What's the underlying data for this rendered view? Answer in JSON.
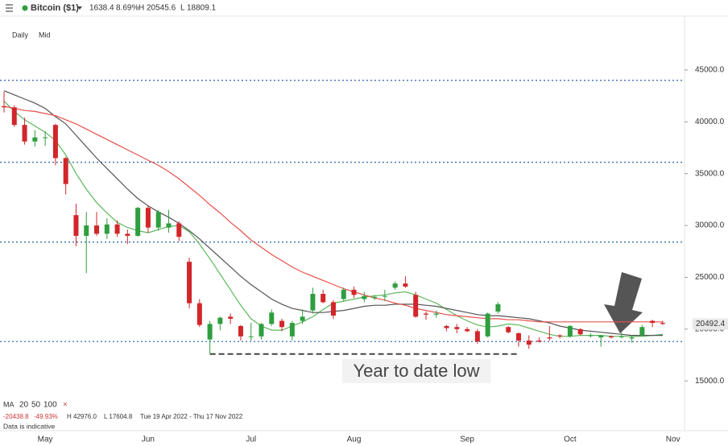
{
  "chart_data": {
    "type": "candlestick",
    "instrument": "Bitcoin ($1)",
    "change": "1638.4",
    "change_pct": "8.69%",
    "high_label": "H 20545.6",
    "low_label": "L 18809.1",
    "interval": "Daily",
    "price_type": "Mid",
    "ma_legend": {
      "label": "MA",
      "close": "×"
    },
    "stats": {
      "change": "-20438.8",
      "change_pct": "-49.93%",
      "high": "H 42976.0",
      "low": "L 17604.8",
      "range": "Tue 19 Apr 2022 - Thu 17 Nov 2022",
      "note": "Data is indicative"
    },
    "annotation": "Year to date low",
    "last_price": 20492.4,
    "ylim": [
      10200,
      50200
    ],
    "yticks": [
      {
        "value": 15000,
        "label": "15000.0"
      },
      {
        "value": 20000,
        "label": "20000.0"
      },
      {
        "value": 25000,
        "label": "25000.0"
      },
      {
        "value": 30000,
        "label": "30000.0"
      },
      {
        "value": 35000,
        "label": "35000.0"
      },
      {
        "value": 40000,
        "label": "40000.0"
      },
      {
        "value": 45000,
        "label": "45000.0"
      }
    ],
    "categories": [
      null,
      null,
      null,
      null,
      "May",
      null,
      null,
      null,
      null,
      null,
      null,
      null,
      null,
      null,
      "Jun",
      null,
      null,
      null,
      null,
      null,
      null,
      null,
      null,
      null,
      "Jul",
      null,
      null,
      null,
      null,
      null,
      null,
      null,
      null,
      null,
      "Aug",
      null,
      null,
      null,
      null,
      null,
      null,
      null,
      null,
      null,
      null,
      "Sep",
      null,
      null,
      null,
      null,
      null,
      null,
      null,
      null,
      null,
      "Oct",
      null,
      null,
      null,
      null,
      null,
      null,
      null,
      null,
      null,
      "Nov"
    ],
    "candles": {
      "up_color": "#2e9e3f",
      "down_color": "#d2262a",
      "open": [
        41500,
        41400,
        39700,
        38100,
        38500,
        39700,
        36500,
        31000,
        29000,
        30000,
        29200,
        30100,
        29200,
        29000,
        31700,
        29800,
        29800,
        30200,
        26500,
        22500,
        19000,
        20500,
        21200,
        20300,
        19300,
        19300,
        20500,
        20800,
        19300,
        20800,
        21800,
        23400,
        22600,
        22900,
        23800,
        22900,
        23000,
        23200,
        24000,
        24400,
        23300,
        21500,
        21400,
        20300,
        20200,
        20000,
        19800,
        19300,
        21700,
        20200,
        19600,
        18900,
        18900,
        19200,
        19400,
        19300,
        20000,
        19400,
        19200,
        19300,
        19300,
        19100,
        19400,
        20800,
        20600,
        null
      ],
      "high": [
        42900,
        41600,
        40400,
        39200,
        39100,
        39800,
        36600,
        32100,
        31300,
        31300,
        30700,
        30500,
        29600,
        31800,
        31900,
        31500,
        31500,
        30400,
        26900,
        22900,
        20800,
        21200,
        21500,
        20400,
        20600,
        20600,
        21900,
        21000,
        20800,
        21900,
        24000,
        23800,
        22800,
        24000,
        24100,
        23600,
        23300,
        23800,
        24600,
        25100,
        23600,
        21700,
        21800,
        20400,
        20500,
        20200,
        20000,
        21600,
        22600,
        20300,
        19700,
        19400,
        19200,
        20300,
        19500,
        20400,
        20100,
        19600,
        19300,
        19400,
        19700,
        19400,
        20400,
        20900,
        20800,
        null
      ],
      "low": [
        40900,
        39500,
        37800,
        37600,
        37700,
        35800,
        33000,
        28000,
        25400,
        29000,
        28700,
        28900,
        28200,
        28900,
        29300,
        29500,
        29300,
        28500,
        22000,
        20200,
        17600,
        19900,
        20500,
        18900,
        18900,
        19000,
        20300,
        19800,
        18900,
        20500,
        21500,
        22500,
        21000,
        22700,
        23000,
        22600,
        22800,
        22700,
        23800,
        24000,
        21100,
        20900,
        21100,
        19800,
        19600,
        19700,
        18600,
        19200,
        21500,
        19600,
        18300,
        18100,
        18700,
        18900,
        19100,
        19200,
        19400,
        19200,
        18300,
        19100,
        19100,
        18700,
        19300,
        20200,
        20400,
        null
      ],
      "close": [
        41400,
        39700,
        38100,
        38500,
        38500,
        36500,
        34000,
        29000,
        30000,
        29200,
        30100,
        29200,
        29000,
        31700,
        29800,
        31300,
        30200,
        28900,
        22500,
        20400,
        20500,
        21100,
        21000,
        19300,
        19300,
        20500,
        21600,
        20200,
        20600,
        21200,
        23400,
        22600,
        21300,
        23800,
        23300,
        23200,
        23100,
        23200,
        24400,
        24100,
        21200,
        21400,
        21500,
        20100,
        20000,
        19800,
        18800,
        21500,
        22400,
        19700,
        18900,
        18500,
        18800,
        19100,
        19300,
        20300,
        19500,
        19400,
        19400,
        19200,
        19300,
        19200,
        20200,
        20600,
        20500,
        null
      ]
    },
    "series": [
      {
        "name": "20",
        "color": "#5cb85c",
        "values": [
          42000,
          41000,
          40200,
          39600,
          39000,
          38200,
          36800,
          35000,
          33500,
          32200,
          31200,
          30300,
          29800,
          29500,
          29300,
          29600,
          29900,
          30000,
          29400,
          28200,
          26800,
          25300,
          23800,
          22300,
          21000,
          20300,
          19900,
          19900,
          20300,
          20700,
          21200,
          21900,
          22500,
          22700,
          22900,
          23100,
          23200,
          23300,
          23500,
          23600,
          23300,
          22900,
          22500,
          21900,
          21300,
          20800,
          20400,
          20200,
          20300,
          20500,
          20400,
          20100,
          19800,
          19500,
          19300,
          19300,
          19400,
          19400,
          19400,
          19300,
          19300,
          19300,
          19300,
          19400,
          19500,
          null
        ]
      },
      {
        "name": "50",
        "color": "#555555",
        "values": [
          43000,
          42600,
          42200,
          41800,
          41300,
          40500,
          39800,
          38700,
          37600,
          36500,
          35500,
          34500,
          33500,
          32600,
          31900,
          31300,
          30800,
          30200,
          29500,
          28700,
          27800,
          26900,
          26000,
          25100,
          24300,
          23600,
          22900,
          22400,
          22000,
          21800,
          21600,
          21600,
          21700,
          21800,
          22000,
          22200,
          22300,
          22300,
          22400,
          22400,
          22400,
          22300,
          22200,
          22000,
          21800,
          21600,
          21400,
          21300,
          21300,
          21200,
          21100,
          21000,
          20800,
          20600,
          20300,
          20100,
          19900,
          19800,
          19700,
          19600,
          19500,
          19400,
          19400,
          19400,
          19400,
          null
        ]
      },
      {
        "name": "100",
        "color": "#e8504a",
        "values": [
          41500,
          41300,
          41100,
          41000,
          40800,
          40600,
          40200,
          39800,
          39300,
          38800,
          38300,
          37800,
          37300,
          36800,
          36300,
          35800,
          35200,
          34500,
          33700,
          32900,
          32000,
          31200,
          30300,
          29500,
          28600,
          27900,
          27200,
          26600,
          26000,
          25500,
          25100,
          24700,
          24300,
          23900,
          23600,
          23300,
          23000,
          22800,
          22500,
          22300,
          22000,
          21800,
          21600,
          21400,
          21300,
          21200,
          21100,
          21000,
          21000,
          20900,
          20900,
          20800,
          20700,
          20700,
          20700,
          20700,
          20700,
          20700,
          20700,
          20700,
          20700,
          20700,
          20700,
          20700,
          20700,
          null
        ]
      }
    ],
    "levels": {
      "values": [
        44000,
        36100,
        28400,
        18800
      ],
      "color": "#3a6fb0"
    },
    "ytd_low_line": 17600
  }
}
